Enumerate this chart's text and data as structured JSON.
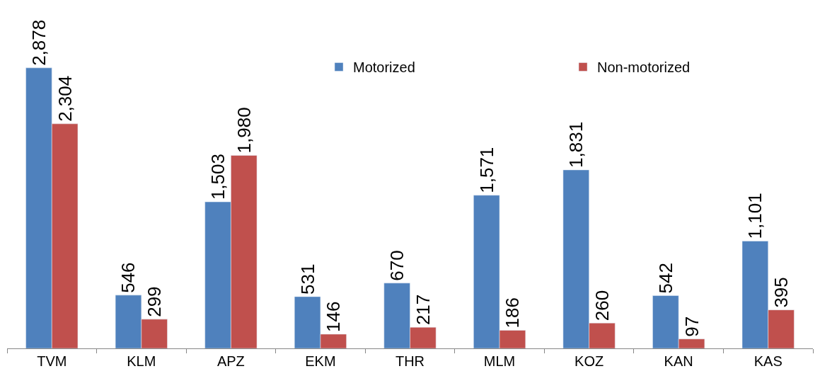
{
  "chart_data": {
    "type": "bar",
    "categories": [
      "TVM",
      "KLM",
      "APZ",
      "EKM",
      "THR",
      "MLM",
      "KOZ",
      "KAN",
      "KAS"
    ],
    "series": [
      {
        "name": "Motorized",
        "color": "#4f81bd",
        "values": [
          2878,
          546,
          1503,
          531,
          670,
          1571,
          1831,
          542,
          1101
        ],
        "value_labels": [
          "2,878",
          "546",
          "1,503",
          "531",
          "670",
          "1,571",
          "1,831",
          "542",
          "1,101"
        ]
      },
      {
        "name": "Non-motorized",
        "color": "#c0504d",
        "values": [
          2304,
          299,
          1980,
          146,
          217,
          186,
          260,
          97,
          395
        ],
        "value_labels": [
          "2,304",
          "299",
          "1,980",
          "146",
          "217",
          "186",
          "260",
          "97",
          "395"
        ]
      }
    ],
    "legend": "top right",
    "tick_labels": "x"
  }
}
